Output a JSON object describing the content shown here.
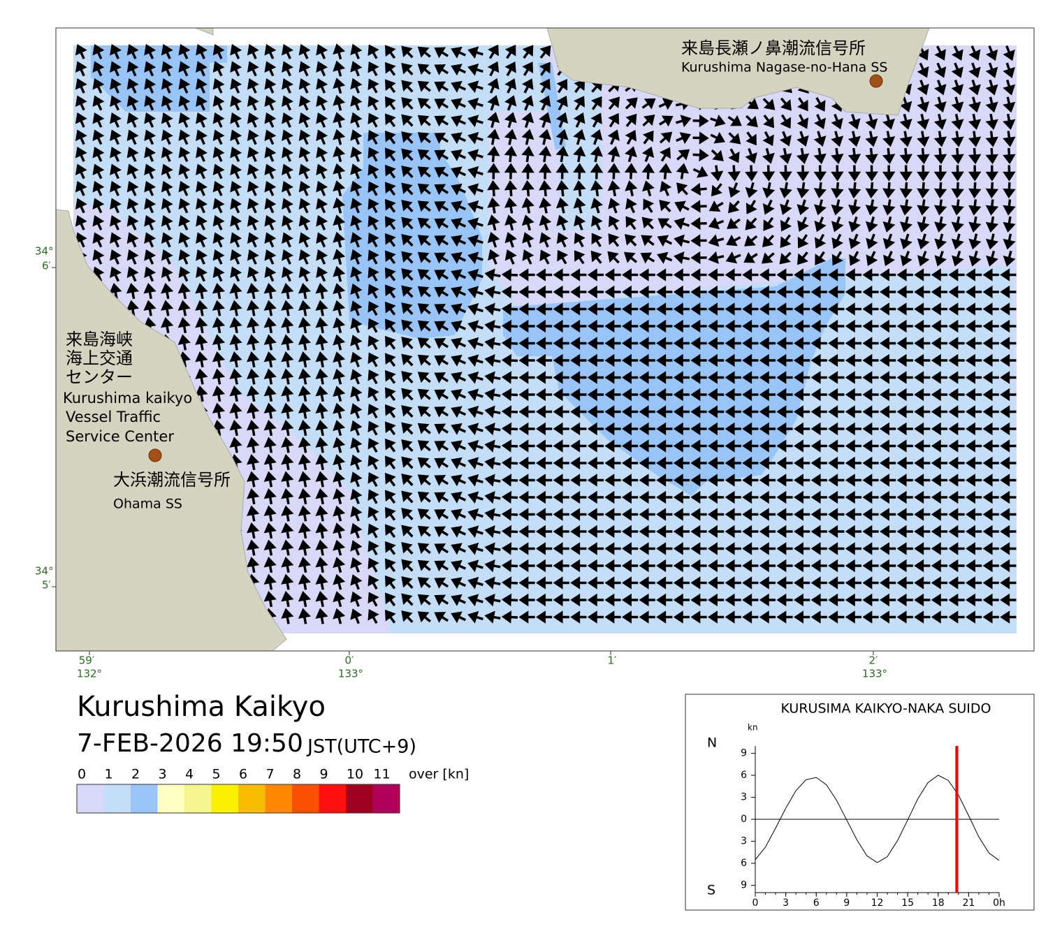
{
  "map": {
    "stations": [
      {
        "name_ja": "来島長瀬ノ鼻潮流信号所",
        "name_en": "Kurushima Nagase-no-Hana SS"
      },
      {
        "name_ja": "大浜潮流信号所",
        "name_en": "Ohama SS"
      }
    ],
    "center": {
      "name_ja": [
        "来島海峡",
        "海上交通",
        "センター"
      ],
      "name_en": [
        "Kurushima kaikyo",
        "Vessel Traffic",
        "Service Center"
      ]
    },
    "lat_labels": [
      {
        "deg": "34°",
        "min": "6′"
      },
      {
        "deg": "34°",
        "min": "5′"
      }
    ],
    "lon_labels": [
      {
        "min": "59′",
        "deg": "132°"
      },
      {
        "min": "0′",
        "deg": "133°"
      },
      {
        "min": "1′"
      },
      {
        "min": "2′",
        "deg": "133°"
      }
    ]
  },
  "header": {
    "title": "Kurushima Kaikyo",
    "datetime": "7-FEB-2026 19:50",
    "timezone": "JST(UTC+9)"
  },
  "legend": {
    "labels": [
      "0",
      "1",
      "2",
      "3",
      "4",
      "5",
      "6",
      "7",
      "8",
      "9",
      "10",
      "11",
      "over [kn]"
    ],
    "colors": [
      "#d8d8f8",
      "#c4def8",
      "#98c4f8",
      "#ffffc4",
      "#f4f490",
      "#f8f000",
      "#f8bc00",
      "#ff8800",
      "#f85000",
      "#ff1010",
      "#a00020",
      "#b0005a"
    ]
  },
  "chart_data": {
    "type": "line",
    "title": "KURUSIMA KAIKYO-NAKA SUIDO",
    "y_unit": "kn",
    "north_label": "N",
    "south_label": "S",
    "x": [
      0,
      1,
      2,
      3,
      4,
      5,
      6,
      7,
      8,
      9,
      10,
      11,
      12,
      13,
      14,
      15,
      16,
      17,
      18,
      19,
      20,
      21,
      22,
      23,
      24
    ],
    "series": [
      {
        "color": "#000000",
        "values": [
          -5.5,
          -3.8,
          -1.2,
          1.5,
          3.9,
          5.4,
          5.7,
          4.7,
          2.6,
          -0.1,
          -2.8,
          -5.0,
          -5.9,
          -5.1,
          -2.9,
          -0.1,
          2.8,
          5.0,
          6.0,
          5.3,
          3.3,
          0.5,
          -2.4,
          -4.6,
          -5.6
        ]
      }
    ],
    "xlim": [
      0,
      24
    ],
    "ylim": [
      -10,
      10
    ],
    "xticks": [
      0,
      3,
      6,
      9,
      12,
      15,
      18,
      21,
      {
        "value": 24,
        "label": "0h"
      }
    ],
    "yticks": [
      {
        "value": -9,
        "label": "9"
      },
      {
        "value": -6,
        "label": "6"
      },
      {
        "value": -3,
        "label": "3"
      },
      0,
      3,
      6,
      9
    ],
    "marker_x": 19.83,
    "marker_color": "#ff0000"
  }
}
